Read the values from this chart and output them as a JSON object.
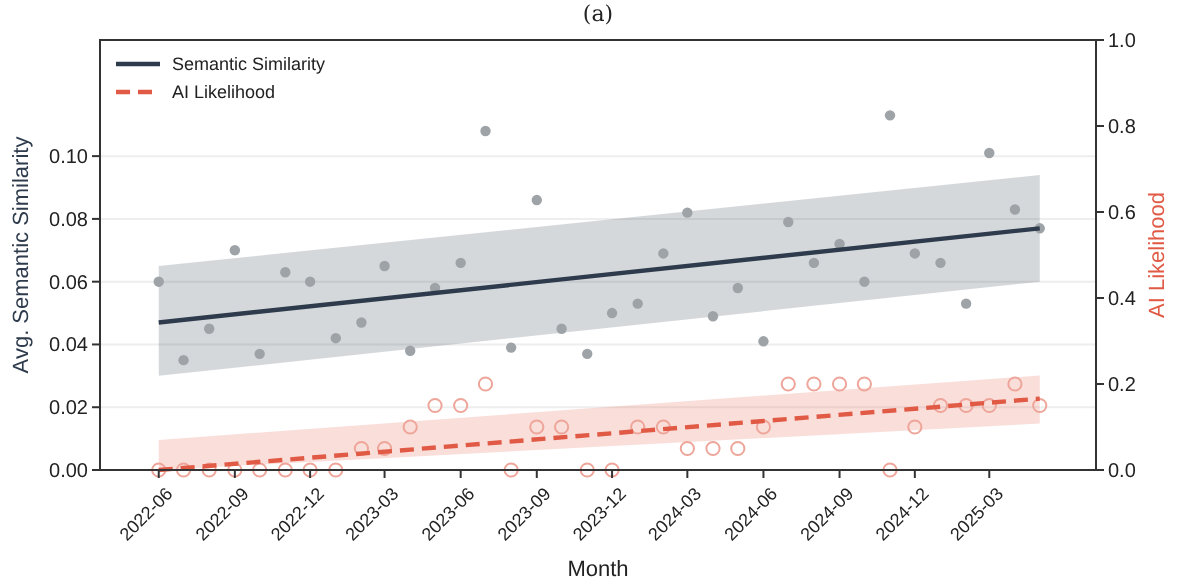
{
  "chart_data": {
    "type": "scatter",
    "title": "(a)",
    "xlabel": "Month",
    "ylabel": "Avg. Semantic Similarity",
    "y2label": "AI Likelihood",
    "x": [
      "2022-06",
      "2022-07",
      "2022-08",
      "2022-09",
      "2022-10",
      "2022-11",
      "2022-12",
      "2023-01",
      "2023-02",
      "2023-03",
      "2023-04",
      "2023-05",
      "2023-06",
      "2023-07",
      "2023-08",
      "2023-09",
      "2023-10",
      "2023-11",
      "2023-12",
      "2024-01",
      "2024-02",
      "2024-03",
      "2024-04",
      "2024-05",
      "2024-06",
      "2024-07",
      "2024-08",
      "2024-09",
      "2024-10",
      "2024-11",
      "2024-12",
      "2025-01",
      "2025-02",
      "2025-03",
      "2025-04",
      "2025-05"
    ],
    "series": [
      {
        "color": "#9ea3a8",
        "values": [
          0.06,
          0.035,
          0.045,
          0.07,
          0.037,
          0.063,
          0.06,
          0.042,
          0.047,
          0.065,
          0.038,
          0.058,
          0.066,
          0.108,
          0.039,
          0.086,
          0.045,
          0.037,
          0.05,
          0.053,
          0.069,
          0.082,
          0.049,
          0.058,
          0.041,
          0.079,
          0.066,
          0.072,
          0.06,
          0.113,
          0.069,
          0.066,
          0.053,
          0.101,
          0.083,
          0.077
        ]
      },
      {
        "axis": "y2",
        "marker": "circle",
        "color": "#eea59a",
        "values": [
          0,
          0,
          0,
          0,
          0,
          0,
          0,
          0,
          0.05,
          0.05,
          0.1,
          0.15,
          0.15,
          0.2,
          0,
          0.1,
          0.1,
          0,
          0,
          0.1,
          0.1,
          0.05,
          0.05,
          0.05,
          0.1,
          0.2,
          0.2,
          0.2,
          0.2,
          0,
          0.1,
          0.15,
          0.15,
          0.15,
          0.2,
          0.15
        ]
      },
      {
        "type": "line",
        "name": "Semantic Similarity",
        "color": "#2e3b4c",
        "line_style": "solid",
        "x": [
          "2022-06",
          "2025-05"
        ],
        "values": [
          0.047,
          0.077
        ],
        "lower": [
          0.03,
          0.06
        ],
        "upper": [
          0.065,
          0.094
        ]
      },
      {
        "type": "line",
        "name": "AI Likelihood",
        "axis": "y2",
        "color": "#e05a45",
        "line_style": "dashed",
        "x": [
          "2022-06",
          "2025-05"
        ],
        "values": [
          0,
          0.166
        ],
        "lower": [
          0,
          0.108
        ],
        "upper": [
          0.07,
          0.22
        ]
      }
    ],
    "xlim": [
      "2022-03-22",
      "2025-07-08"
    ],
    "xticks": [
      "2022-06",
      "2022-09",
      "2022-12",
      "2023-03",
      "2023-06",
      "2023-09",
      "2023-12",
      "2024-03",
      "2024-06",
      "2024-09",
      "2024-12",
      "2025-03"
    ],
    "ylim": [
      0,
      0.137
    ],
    "yticks": [
      {
        "value": 0,
        "label": "0.00"
      },
      {
        "value": 0.02,
        "label": "0.02"
      },
      {
        "value": 0.04,
        "label": "0.04"
      },
      {
        "value": 0.06,
        "label": "0.06"
      },
      {
        "value": 0.08,
        "label": "0.08"
      },
      {
        "value": 0.1,
        "label": "0.10"
      }
    ],
    "y2lim": [
      0,
      1
    ],
    "y2ticks": [
      {
        "value": 0,
        "label": "0.0"
      },
      {
        "value": 0.2,
        "label": "0.2"
      },
      {
        "value": 0.4,
        "label": "0.4"
      },
      {
        "value": 0.6,
        "label": "0.6"
      },
      {
        "value": 0.8,
        "label": "0.8"
      },
      {
        "value": 1,
        "label": "1.0"
      }
    ],
    "grid": "y",
    "legend": "top left"
  }
}
